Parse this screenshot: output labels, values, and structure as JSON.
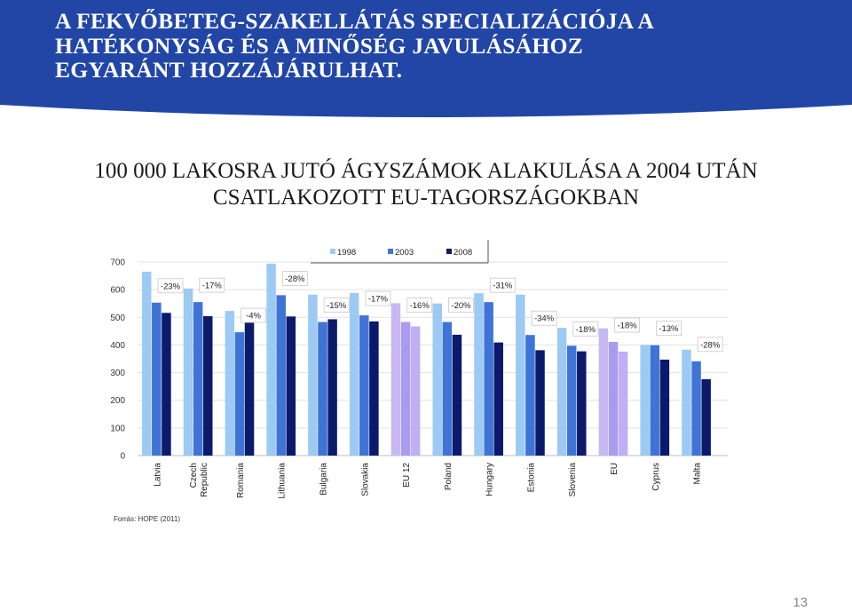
{
  "slide": {
    "title_lines": [
      "A FEKVŐBETEG-SZAKELLÁTÁS SPECIALIZÁCIÓJA A",
      "HATÉKONYSÁG ÉS A MINŐSÉG JAVULÁSÁHOZ",
      "EGYARÁNT HOZZÁJÁRULHAT."
    ],
    "subtitle_lines": [
      "100 000 LAKOSRA JUTÓ ÁGYSZÁMOK ALAKULÁSA A 2004 UTÁN",
      "CSATLAKOZOTT EU-TAGORSZÁGOKBAN"
    ],
    "page_number": "13"
  },
  "colors": {
    "banner": "#2146a6",
    "text_dark": "#1a1a1a"
  },
  "chart_data": {
    "type": "bar",
    "categories": [
      "Latvia",
      "Czech Republic",
      "Romania",
      "Lithuania",
      "Bulgaria",
      "Slovakia",
      "EU 12",
      "Poland",
      "Hungary",
      "Estonia",
      "Slovenia",
      "EU",
      "Cyprus",
      "Malta"
    ],
    "category_lines": [
      [
        "Latvia"
      ],
      [
        "Czech",
        "Republic"
      ],
      [
        "Romania"
      ],
      [
        "Lithuania"
      ],
      [
        "Bulgaria"
      ],
      [
        "Slovakia"
      ],
      [
        "EU 12"
      ],
      [
        "Poland"
      ],
      [
        "Hungary"
      ],
      [
        "Estonia"
      ],
      [
        "Slovenia"
      ],
      [
        "EU"
      ],
      [
        "Cyprus"
      ],
      [
        "Malta"
      ]
    ],
    "series": [
      {
        "name": "1998",
        "color": "#9dcaf2",
        "values": [
          665,
          604,
          523,
          694,
          582,
          588,
          551,
          550,
          587,
          582,
          462,
          460,
          400,
          383
        ]
      },
      {
        "name": "2003",
        "color": "#3f74d6",
        "values": [
          553,
          555,
          446,
          580,
          483,
          507,
          483,
          483,
          555,
          436,
          397,
          411,
          399,
          341
        ]
      },
      {
        "name": "2008",
        "color": "#0c1a6b",
        "values": [
          516,
          504,
          505,
          503,
          493,
          485,
          467,
          437,
          409,
          381,
          377,
          376,
          347,
          276
        ]
      }
    ],
    "aggregate_colors": [
      "#c8b8f2",
      "#a99bef",
      "#c2aef4"
    ],
    "aggregate_categories": [
      "EU 12",
      "EU"
    ],
    "annotations": [
      "-23%",
      "-17%",
      "-4%",
      "-28%",
      "-15%",
      "-17%",
      "-16%",
      "-20%",
      "-31%",
      "-34%",
      "-18%",
      "-18%",
      "-13%",
      "-28%"
    ],
    "yticks": [
      0,
      100,
      200,
      300,
      400,
      500,
      600,
      700
    ],
    "ylim": [
      0,
      700
    ],
    "legend_position": "top-center",
    "grid": true,
    "source": "Forrás: HOPE (2011)"
  }
}
